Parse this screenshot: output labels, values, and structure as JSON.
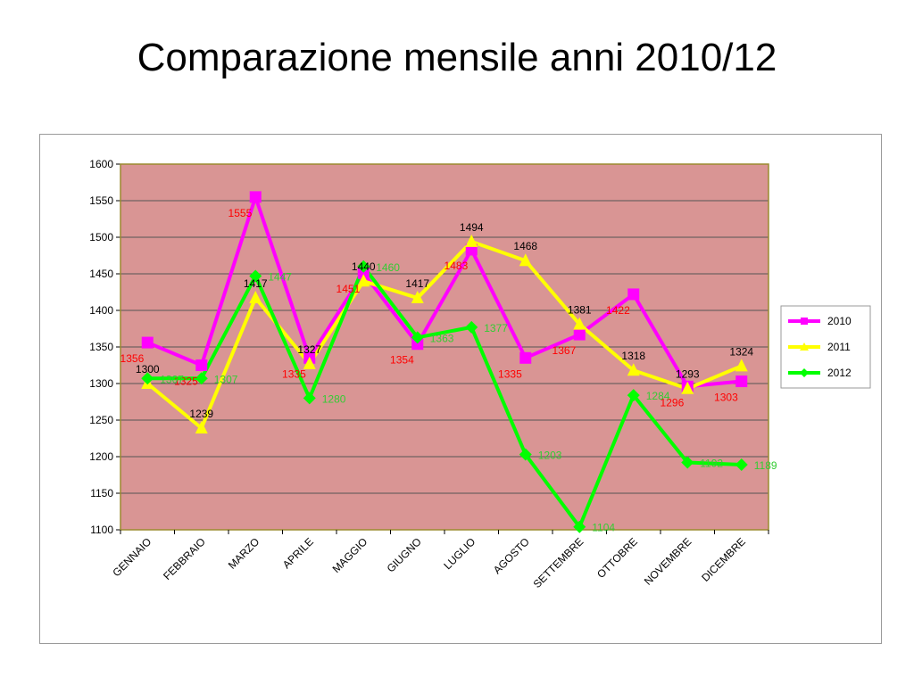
{
  "slide": {
    "title": "Comparazione mensile anni 2010/12"
  },
  "colors": {
    "plot_bg": "#d99594",
    "plot_border": "#9b8a2f",
    "gridline": "#555555",
    "label_2010": "#ff0000",
    "label_2011": "#000000",
    "label_2012": "#33cc33"
  },
  "chart_data": {
    "type": "line",
    "title": "",
    "xlabel": "",
    "ylabel": "",
    "ylim": [
      1100,
      1600
    ],
    "yticks": [
      1100,
      1150,
      1200,
      1250,
      1300,
      1350,
      1400,
      1450,
      1500,
      1550,
      1600
    ],
    "grid": true,
    "legend_position": "right",
    "categories": [
      "GENNAIO",
      "FEBBRAIO",
      "MARZO",
      "APRILE",
      "MAGGIO",
      "GIUGNO",
      "LUGLIO",
      "AGOSTO",
      "SETTEMBRE",
      "OTTOBRE",
      "NOVEMBRE",
      "DICEMBRE"
    ],
    "series": [
      {
        "name": "2010",
        "color": "#ff00ff",
        "marker": "square",
        "label_color": "#ff0000",
        "values": [
          1356,
          1325,
          1555,
          1335,
          1451,
          1354,
          1483,
          1335,
          1367,
          1422,
          1296,
          1303
        ]
      },
      {
        "name": "2011",
        "color": "#ffff00",
        "marker": "triangle",
        "label_color": "#000000",
        "values": [
          1300,
          1239,
          1417,
          1327,
          1440,
          1417,
          1494,
          1468,
          1381,
          1318,
          1293,
          1324
        ]
      },
      {
        "name": "2012",
        "color": "#00ff00",
        "marker": "diamond",
        "label_color": "#33cc33",
        "values": [
          1307,
          1307,
          1447,
          1280,
          1460,
          1363,
          1377,
          1203,
          1104,
          1284,
          1192,
          1189
        ]
      }
    ]
  }
}
